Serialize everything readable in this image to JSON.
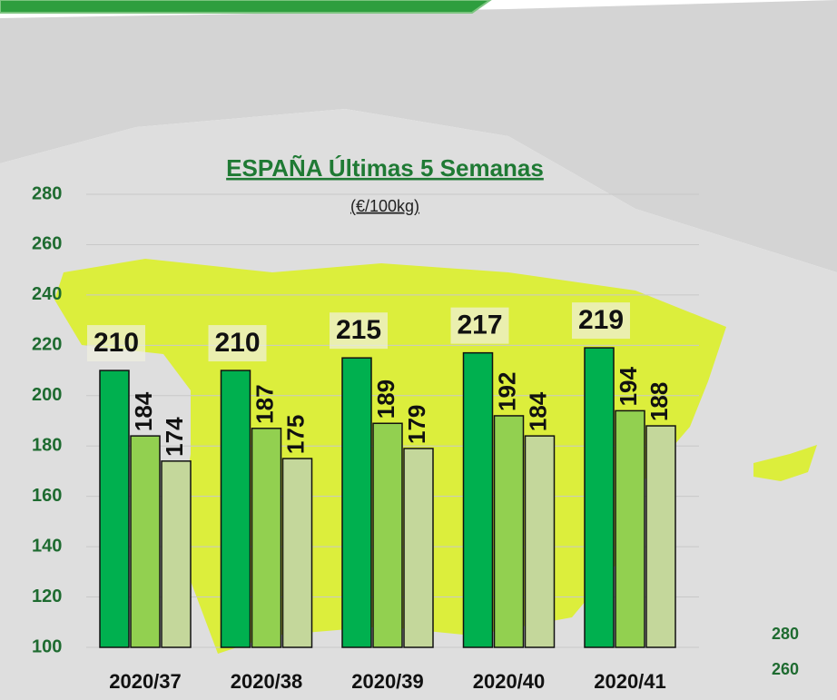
{
  "chart_data": {
    "type": "bar",
    "title": "ESPAÑA Últimas 5 Semanas",
    "subtitle": "(€/100kg)",
    "categories": [
      "2020/37",
      "2020/38",
      "2020/39",
      "2020/40",
      "2020/41"
    ],
    "series": [
      {
        "color": "#00b04f",
        "values": [
          210,
          210,
          215,
          217,
          219
        ]
      },
      {
        "color": "#92d050",
        "values": [
          184,
          187,
          189,
          192,
          194
        ]
      },
      {
        "color": "#c4d79b",
        "values": [
          174,
          175,
          179,
          184,
          188
        ]
      }
    ],
    "ylim": [
      100,
      280
    ],
    "yticks": [
      100,
      120,
      140,
      160,
      180,
      200,
      220,
      240,
      260,
      280
    ],
    "grid": true,
    "side_labels": [
      "280",
      "260"
    ]
  }
}
